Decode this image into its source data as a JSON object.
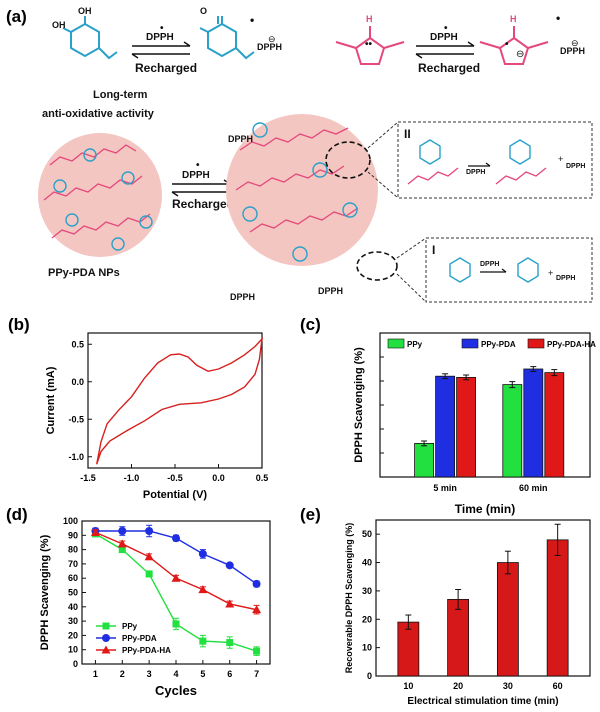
{
  "panel_labels": {
    "a": "(a)",
    "b": "(b)",
    "c": "(c)",
    "d": "(d)",
    "e": "(e)"
  },
  "scheme": {
    "dpph_label": "DPPH",
    "recharged_label": "Recharged",
    "long_term_line1": "Long-term",
    "long_term_line2": "anti-oxidative activity",
    "nps_label": "PPy-PDA NPs",
    "inset_label_1": "I",
    "inset_label_2": "II",
    "oh_label": "OH",
    "nh_label": "H",
    "n_label": "N",
    "radical_dot": "•",
    "minus_sign": "⊖",
    "plus_sign": "+",
    "colors": {
      "catechol": "#2aa1c9",
      "pyrrole": "#e5487a",
      "np_fill": "#f4c6c2",
      "phosphate": "#1f4fb5"
    }
  },
  "chart_data": [
    {
      "id": "b",
      "type": "line",
      "xlabel": "Potential (V)",
      "ylabel": "Current (mA)",
      "xlim": [
        -1.5,
        0.5
      ],
      "ylim": [
        -1.15,
        0.65
      ],
      "xticks": [
        -1.5,
        -1.0,
        -0.5,
        0.0,
        0.5
      ],
      "xtick_labels": [
        "-1.5",
        "-1.0",
        "-0.5",
        "0.0",
        "0.5"
      ],
      "yticks": [
        -1.0,
        -0.5,
        0.0,
        0.5
      ],
      "ytick_labels": [
        "-1.0",
        "-0.5",
        "0.0",
        "0.5"
      ],
      "color": "#d62020",
      "forward": [
        [
          -1.4,
          -1.1
        ],
        [
          -1.35,
          -0.8
        ],
        [
          -1.28,
          -0.56
        ],
        [
          -1.15,
          -0.38
        ],
        [
          -1.0,
          -0.2
        ],
        [
          -0.85,
          0.05
        ],
        [
          -0.7,
          0.25
        ],
        [
          -0.55,
          0.36
        ],
        [
          -0.45,
          0.37
        ],
        [
          -0.35,
          0.33
        ],
        [
          -0.25,
          0.22
        ],
        [
          -0.12,
          0.14
        ],
        [
          0.0,
          0.17
        ],
        [
          0.15,
          0.25
        ],
        [
          0.3,
          0.36
        ],
        [
          0.42,
          0.47
        ],
        [
          0.5,
          0.57
        ]
      ],
      "reverse": [
        [
          0.5,
          0.57
        ],
        [
          0.47,
          0.3
        ],
        [
          0.42,
          0.1
        ],
        [
          0.3,
          -0.07
        ],
        [
          0.15,
          -0.17
        ],
        [
          0.0,
          -0.23
        ],
        [
          -0.2,
          -0.28
        ],
        [
          -0.45,
          -0.3
        ],
        [
          -0.65,
          -0.37
        ],
        [
          -0.85,
          -0.52
        ],
        [
          -1.05,
          -0.65
        ],
        [
          -1.25,
          -0.79
        ],
        [
          -1.35,
          -0.93
        ],
        [
          -1.4,
          -1.1
        ]
      ]
    },
    {
      "id": "c",
      "type": "bar",
      "xlabel": "Time (min)",
      "ylabel": "DPPH Scavenging (%)",
      "categories": [
        "5 min",
        "60 min"
      ],
      "ylim": [
        0,
        120
      ],
      "yticks": [
        0,
        20,
        40,
        60,
        80,
        100,
        120
      ],
      "series": [
        {
          "name": "PPy",
          "color": "#22e040",
          "values": [
            28,
            77
          ],
          "errors": [
            2,
            2.5
          ]
        },
        {
          "name": "PPy-PDA",
          "color": "#1f2ee0",
          "values": [
            84,
            90
          ],
          "errors": [
            2,
            2
          ]
        },
        {
          "name": "PPy-PDA-HA",
          "color": "#e01818",
          "values": [
            83,
            87
          ],
          "errors": [
            2,
            2.5
          ]
        }
      ],
      "legend": "top"
    },
    {
      "id": "d",
      "type": "line",
      "xlabel": "Cycles",
      "ylabel": "DPPH Scavenging (%)",
      "x": [
        1,
        2,
        3,
        4,
        5,
        6,
        7
      ],
      "xlim": [
        0.5,
        7.5
      ],
      "ylim": [
        0,
        100
      ],
      "yticks": [
        0,
        10,
        20,
        30,
        40,
        50,
        60,
        70,
        80,
        90,
        100
      ],
      "series": [
        {
          "name": "PPy",
          "color": "#22e040",
          "marker": "square",
          "values": [
            91,
            80,
            63,
            28,
            16,
            15,
            9
          ],
          "errors": [
            2,
            2,
            2,
            4,
            4,
            4,
            3
          ]
        },
        {
          "name": "PPy-PDA",
          "color": "#1f2ee0",
          "marker": "circle",
          "values": [
            93,
            93,
            93,
            88,
            77,
            69,
            56
          ],
          "errors": [
            2,
            3,
            4,
            2,
            3,
            1,
            2
          ]
        },
        {
          "name": "PPy-PDA-HA",
          "color": "#e01818",
          "marker": "triangle",
          "values": [
            92,
            84,
            75,
            60,
            52,
            42,
            38
          ],
          "errors": [
            2,
            2,
            2,
            2,
            2,
            2,
            3
          ]
        }
      ],
      "legend": "bottom-left"
    },
    {
      "id": "e",
      "type": "bar",
      "xlabel": "Electrical stimulation time (min)",
      "ylabel": "Recoverable DPPH Scavenging (%)",
      "categories": [
        "10",
        "20",
        "30",
        "60"
      ],
      "ylim": [
        0,
        55
      ],
      "yticks": [
        0,
        10,
        20,
        30,
        40,
        50
      ],
      "color": "#d61818",
      "values": [
        19,
        27,
        40,
        48
      ],
      "errors": [
        2.5,
        3.5,
        4,
        5.5
      ]
    }
  ]
}
